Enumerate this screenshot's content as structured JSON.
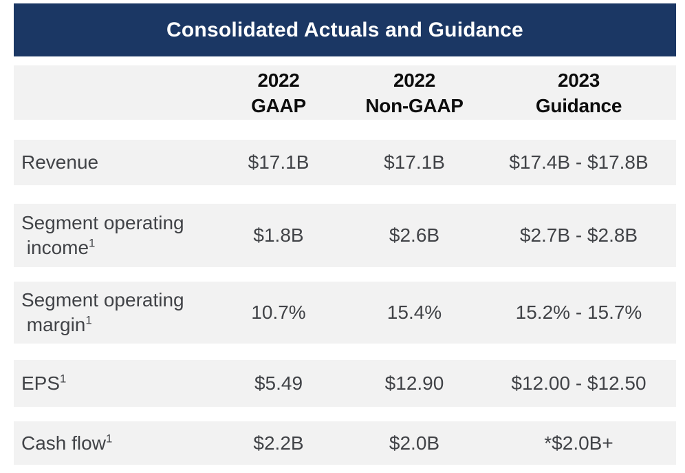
{
  "colors": {
    "title_bar_bg": "#1b3764",
    "title_text": "#ffffff",
    "row_bg": "#f2f2f2",
    "column_header_text": "#0d0d0d",
    "data_text": "#414347",
    "page_bg": "#ffffff"
  },
  "table": {
    "title": "Consolidated Actuals and Guidance",
    "column_headers": [
      {
        "line1": "2022",
        "line2": "GAAP"
      },
      {
        "line1": "2022",
        "line2": "Non-GAAP"
      },
      {
        "line1": "2023",
        "line2": "Guidance"
      }
    ],
    "rows": [
      {
        "label": "Revenue",
        "sup": "",
        "values": [
          "$17.1B",
          "$17.1B",
          "$17.4B - $17.8B"
        ]
      },
      {
        "label": "Segment operating\n income",
        "sup": "1",
        "values": [
          "$1.8B",
          "$2.6B",
          "$2.7B - $2.8B"
        ]
      },
      {
        "label": "Segment operating\n margin",
        "sup": "1",
        "values": [
          "10.7%",
          "15.4%",
          "15.2% - 15.7%"
        ]
      },
      {
        "label": "EPS",
        "sup": "1",
        "values": [
          "$5.49",
          "$12.90",
          "$12.00 - $12.50"
        ]
      },
      {
        "label": "Cash flow",
        "sup": "1",
        "values": [
          "$2.2B",
          "$2.0B",
          "*$2.0B+"
        ]
      }
    ]
  },
  "chart_data": {
    "type": "table",
    "title": "Consolidated Actuals and Guidance",
    "columns": [
      "",
      "2022 GAAP",
      "2022 Non-GAAP",
      "2023 Guidance"
    ],
    "rows": [
      [
        "Revenue",
        "$17.1B",
        "$17.1B",
        "$17.4B - $17.8B"
      ],
      [
        "Segment operating income¹",
        "$1.8B",
        "$2.6B",
        "$2.7B - $2.8B"
      ],
      [
        "Segment operating margin¹",
        "10.7%",
        "15.4%",
        "15.2% - 15.7%"
      ],
      [
        "EPS¹",
        "$5.49",
        "$12.90",
        "$12.00 - $12.50"
      ],
      [
        "Cash flow¹",
        "$2.2B",
        "$2.0B",
        "*$2.0B+"
      ]
    ],
    "layout": {
      "header_style": "navy-bar",
      "row_style": "gray-bands-with-gaps",
      "value_alignment": "center"
    }
  }
}
